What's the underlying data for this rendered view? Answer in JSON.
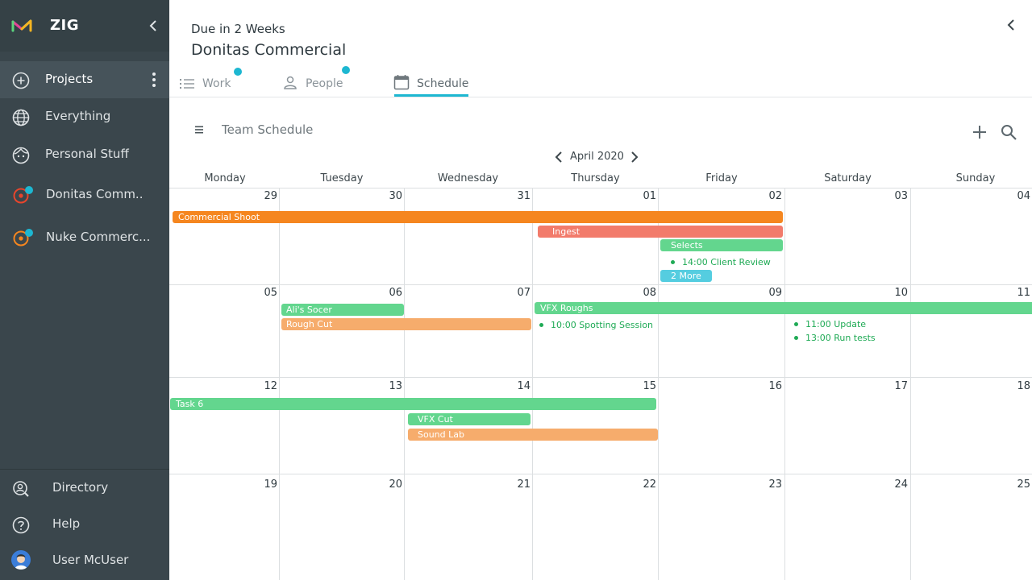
{
  "app": {
    "name": "ZIG"
  },
  "sidebar": {
    "items": [
      {
        "label": "Projects",
        "icon": "plus-circle-icon"
      },
      {
        "label": "Everything",
        "icon": "globe-icon"
      },
      {
        "label": "Personal Stuff",
        "icon": "face-icon"
      },
      {
        "label": "Donitas Comm..",
        "icon": "project-target-icon"
      },
      {
        "label": "Nuke Commerc...",
        "icon": "project-target-icon"
      }
    ],
    "bottom": [
      {
        "label": "Directory",
        "icon": "person-search-icon"
      },
      {
        "label": "Help",
        "icon": "help-circle-icon"
      },
      {
        "label": "User McUser",
        "icon": "avatar-icon"
      }
    ]
  },
  "header": {
    "subtitle": "Due in 2 Weeks",
    "title": "Donitas Commercial"
  },
  "tabs": [
    {
      "label": "Work",
      "icon": "list-icon"
    },
    {
      "label": "People",
      "icon": "person-icon"
    },
    {
      "label": "Schedule",
      "icon": "calendar-icon"
    }
  ],
  "schedule": {
    "title": "Team Schedule",
    "month": "April 2020",
    "weekdays": [
      "Monday",
      "Tuesday",
      "Wednesday",
      "Thursday",
      "Friday",
      "Saturday",
      "Sunday"
    ],
    "weeks": [
      [
        "29",
        "30",
        "31",
        "01",
        "02",
        "03",
        "04"
      ],
      [
        "05",
        "06",
        "07",
        "08",
        "09",
        "10",
        "11"
      ],
      [
        "12",
        "13",
        "14",
        "15",
        "16",
        "17",
        "18"
      ],
      [
        "19",
        "20",
        "21",
        "22",
        "23",
        "24",
        "25"
      ]
    ],
    "events": {
      "commercial_shoot": "Commercial Shoot",
      "ingest": "Ingest",
      "selects": "Selects",
      "more": "2 More",
      "alis_soccer": "Ali's Socer",
      "rough_cut": "Rough Cut",
      "vfx_roughs": "VFX Roughs",
      "task6": "Task 6",
      "vfx_cut": "VFX Cut",
      "sound_lab": "Sound Lab"
    },
    "appointments": {
      "client_review": "14:00 Client Review",
      "spotting": "10:00 Spotting Session",
      "update": "11:00 Update",
      "run_tests": "13:00 Run tests"
    }
  },
  "colors": {
    "accent": "#1db7d1",
    "sidebar_bg": "#3a464c",
    "event_orange": "#f5861f",
    "event_salmon": "#f27b6b",
    "event_green": "#63d68e",
    "event_peach": "#f6ac6c",
    "event_cyan": "#55cde0",
    "appointment_text": "#1faa55"
  }
}
